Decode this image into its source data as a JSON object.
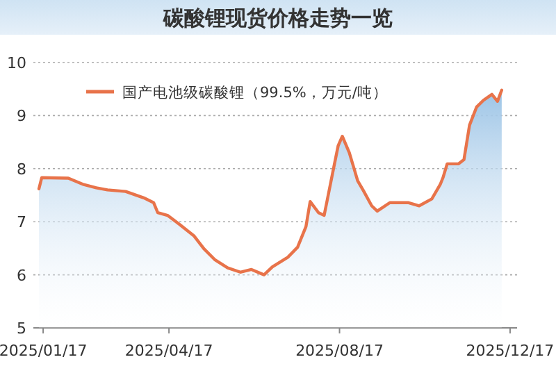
{
  "chart_data": {
    "type": "area",
    "title": "碳酸锂现货价格走势一览",
    "legend": "top left",
    "grid": "y",
    "line_style": "solid",
    "xlim": [
      "2025-01-10",
      "2025-12-22"
    ],
    "xticks": [
      {
        "value": "2025-01-17",
        "label": "2025/01/17"
      },
      {
        "value": "2025-04-17",
        "label": "2025/04/17"
      },
      {
        "value": "2025-08-17",
        "label": "2025/08/17"
      },
      {
        "value": "2025-12-17",
        "label": "2025/12/17"
      }
    ],
    "ylim": [
      5,
      10
    ],
    "yticks": [
      5,
      6,
      7,
      8,
      9,
      10
    ],
    "series": [
      {
        "name": "国产电池级碳酸锂（99.5%，万元/吨）",
        "color": "#e8734a",
        "x": [
          "2025-01-14",
          "2025-01-16",
          "2025-02-04",
          "2025-02-15",
          "2025-02-24",
          "2025-03-04",
          "2025-03-17",
          "2025-03-30",
          "2025-04-06",
          "2025-04-09",
          "2025-04-16",
          "2025-04-25",
          "2025-05-05",
          "2025-05-12",
          "2025-05-20",
          "2025-05-29",
          "2025-06-07",
          "2025-06-15",
          "2025-06-24",
          "2025-06-30",
          "2025-07-11",
          "2025-07-18",
          "2025-07-24",
          "2025-07-27",
          "2025-08-02",
          "2025-08-06",
          "2025-08-08",
          "2025-08-13",
          "2025-08-16",
          "2025-08-19",
          "2025-08-24",
          "2025-08-30",
          "2025-09-03",
          "2025-09-09",
          "2025-09-13",
          "2025-09-22",
          "2025-10-05",
          "2025-10-13",
          "2025-10-22",
          "2025-10-28",
          "2025-10-30",
          "2025-11-02",
          "2025-11-10",
          "2025-11-14",
          "2025-11-18",
          "2025-11-23",
          "2025-11-28",
          "2025-12-04",
          "2025-12-08",
          "2025-12-11"
        ],
        "values": [
          7.62,
          7.83,
          7.82,
          7.7,
          7.64,
          7.6,
          7.57,
          7.45,
          7.36,
          7.17,
          7.12,
          6.94,
          6.73,
          6.49,
          6.28,
          6.13,
          6.05,
          6.1,
          6.0,
          6.15,
          6.33,
          6.52,
          6.91,
          7.38,
          7.17,
          7.12,
          7.38,
          8.04,
          8.43,
          8.61,
          8.3,
          7.77,
          7.59,
          7.3,
          7.2,
          7.36,
          7.36,
          7.3,
          7.43,
          7.7,
          7.83,
          8.09,
          8.09,
          8.17,
          8.82,
          9.16,
          9.29,
          9.4,
          9.27,
          9.48
        ]
      }
    ]
  }
}
